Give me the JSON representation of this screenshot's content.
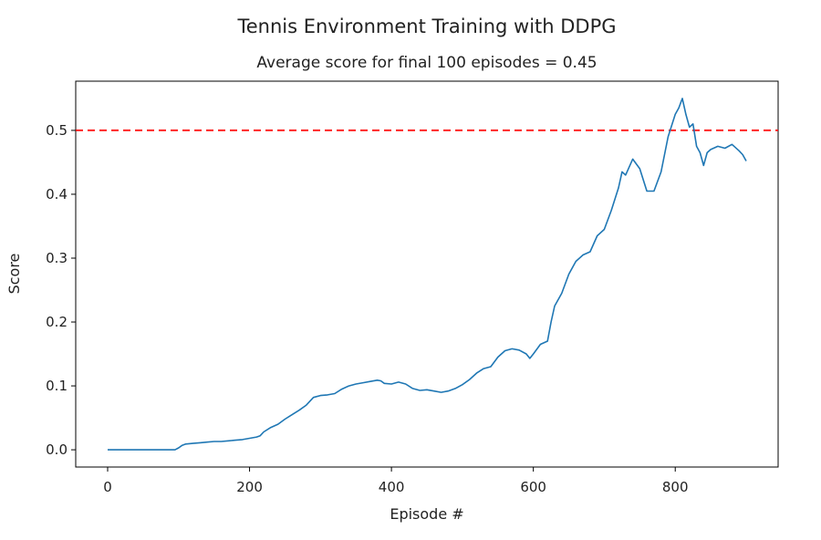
{
  "chart_data": {
    "type": "line",
    "title": "Tennis Environment Training with DDPG",
    "subtitle": "Average score for final 100 episodes = 0.45",
    "xlabel": "Episode #",
    "ylabel": "Score",
    "xlim": [
      -45,
      945
    ],
    "ylim": [
      -0.027,
      0.577
    ],
    "xticks": [
      0,
      200,
      400,
      600,
      800
    ],
    "yticks": [
      0.0,
      0.1,
      0.2,
      0.3,
      0.4,
      0.5
    ],
    "xtick_labels": [
      "0",
      "200",
      "400",
      "600",
      "800"
    ],
    "ytick_labels": [
      "0.0",
      "0.1",
      "0.2",
      "0.3",
      "0.4",
      "0.5"
    ],
    "grid": false,
    "series": [
      {
        "color": "#1f77b4",
        "x": [
          0,
          20,
          40,
          60,
          80,
          95,
          100,
          105,
          110,
          120,
          130,
          140,
          150,
          160,
          170,
          180,
          190,
          200,
          210,
          215,
          220,
          230,
          240,
          250,
          260,
          270,
          280,
          290,
          300,
          310,
          320,
          330,
          340,
          350,
          360,
          370,
          380,
          385,
          390,
          400,
          410,
          420,
          430,
          440,
          450,
          460,
          470,
          480,
          490,
          500,
          510,
          520,
          530,
          540,
          550,
          560,
          570,
          580,
          590,
          595,
          600,
          610,
          620,
          625,
          630,
          640,
          650,
          660,
          670,
          680,
          690,
          700,
          710,
          720,
          725,
          730,
          740,
          750,
          760,
          770,
          780,
          790,
          800,
          805,
          810,
          815,
          820,
          825,
          830,
          835,
          840,
          845,
          850,
          860,
          870,
          880,
          890,
          895,
          900
        ],
        "y": [
          0.0,
          0.0,
          0.0,
          0.0,
          0.0,
          0.0,
          0.003,
          0.007,
          0.009,
          0.01,
          0.011,
          0.012,
          0.013,
          0.013,
          0.014,
          0.015,
          0.016,
          0.018,
          0.02,
          0.022,
          0.028,
          0.035,
          0.04,
          0.048,
          0.055,
          0.062,
          0.07,
          0.082,
          0.085,
          0.086,
          0.088,
          0.095,
          0.1,
          0.103,
          0.105,
          0.107,
          0.109,
          0.108,
          0.104,
          0.103,
          0.106,
          0.103,
          0.096,
          0.093,
          0.094,
          0.092,
          0.09,
          0.092,
          0.096,
          0.102,
          0.11,
          0.12,
          0.127,
          0.13,
          0.145,
          0.155,
          0.158,
          0.156,
          0.15,
          0.143,
          0.15,
          0.165,
          0.17,
          0.2,
          0.225,
          0.245,
          0.275,
          0.295,
          0.305,
          0.31,
          0.335,
          0.345,
          0.375,
          0.41,
          0.435,
          0.43,
          0.455,
          0.44,
          0.405,
          0.405,
          0.435,
          0.49,
          0.525,
          0.535,
          0.55,
          0.525,
          0.505,
          0.51,
          0.475,
          0.465,
          0.445,
          0.465,
          0.47,
          0.475,
          0.472,
          0.478,
          0.468,
          0.462,
          0.452
        ]
      }
    ],
    "reference_line": {
      "y": 0.5,
      "color": "#ff0000",
      "style": "dashed"
    }
  }
}
